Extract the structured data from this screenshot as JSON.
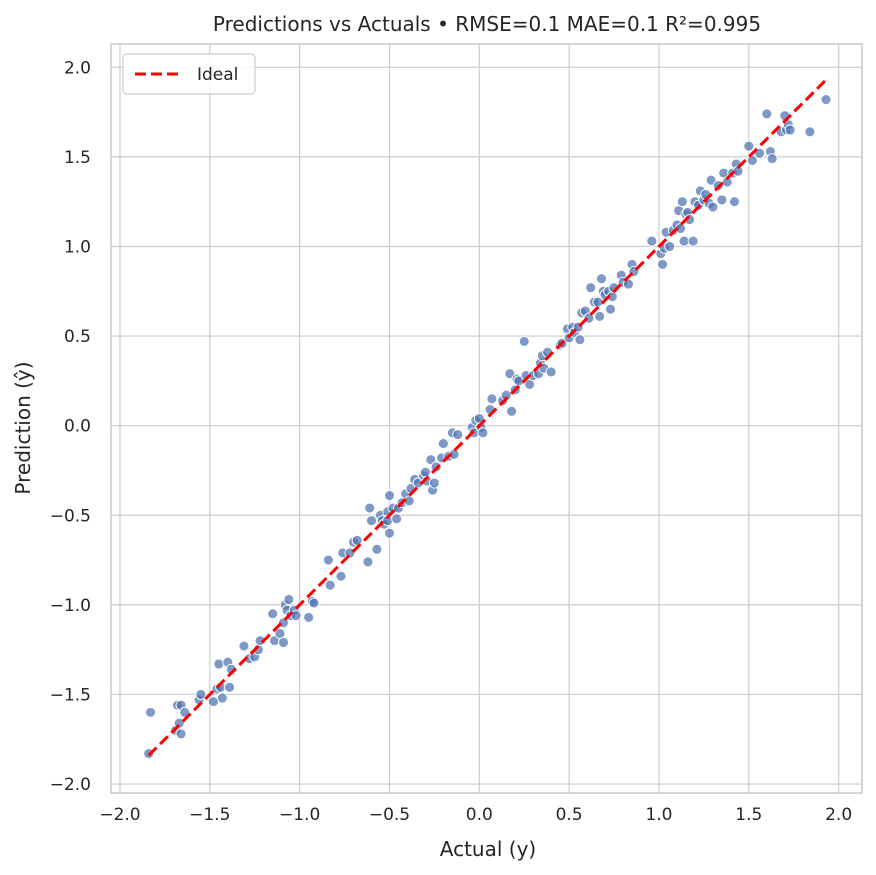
{
  "chart_data": {
    "type": "scatter",
    "title": "Predictions vs Actuals  •  RMSE=0.1  MAE=0.1  R²=0.995",
    "xlabel": "Actual (y)",
    "ylabel": "Prediction (ŷ)",
    "xlim": [
      -2.05,
      2.13
    ],
    "ylim": [
      -2.05,
      2.13
    ],
    "xticks": [
      -2.0,
      -1.5,
      -1.0,
      -0.5,
      0.0,
      0.5,
      1.0,
      1.5,
      2.0
    ],
    "yticks": [
      -2.0,
      -1.5,
      -1.0,
      -0.5,
      0.0,
      0.5,
      1.0,
      1.5,
      2.0
    ],
    "xtick_labels": [
      "−2.0",
      "−1.5",
      "−1.0",
      "−0.5",
      "0.0",
      "0.5",
      "1.0",
      "1.5",
      "2.0"
    ],
    "ytick_labels": [
      "−2.0",
      "−1.5",
      "−1.0",
      "−0.5",
      "0.0",
      "0.5",
      "1.0",
      "1.5",
      "2.0"
    ],
    "grid": true,
    "legend": {
      "placement": "top-left",
      "entries": [
        "Ideal"
      ]
    },
    "colors": {
      "points": "#4c72b0",
      "ideal": "#ff0000"
    },
    "ideal_line": {
      "x": [
        -1.84,
        1.93
      ],
      "y": [
        -1.84,
        1.93
      ]
    },
    "points": [
      [
        -1.84,
        -1.83
      ],
      [
        -1.83,
        -1.6
      ],
      [
        -1.69,
        -1.7
      ],
      [
        -1.68,
        -1.56
      ],
      [
        -1.67,
        -1.66
      ],
      [
        -1.66,
        -1.72
      ],
      [
        -1.66,
        -1.56
      ],
      [
        -1.64,
        -1.6
      ],
      [
        -1.56,
        -1.53
      ],
      [
        -1.55,
        -1.5
      ],
      [
        -1.48,
        -1.54
      ],
      [
        -1.46,
        -1.47
      ],
      [
        -1.45,
        -1.33
      ],
      [
        -1.44,
        -1.46
      ],
      [
        -1.43,
        -1.52
      ],
      [
        -1.4,
        -1.32
      ],
      [
        -1.39,
        -1.46
      ],
      [
        -1.38,
        -1.36
      ],
      [
        -1.31,
        -1.23
      ],
      [
        -1.28,
        -1.3
      ],
      [
        -1.25,
        -1.29
      ],
      [
        -1.23,
        -1.25
      ],
      [
        -1.22,
        -1.2
      ],
      [
        -1.15,
        -1.05
      ],
      [
        -1.14,
        -1.2
      ],
      [
        -1.11,
        -1.16
      ],
      [
        -1.09,
        -1.1
      ],
      [
        -1.09,
        -1.21
      ],
      [
        -1.08,
        -1.0
      ],
      [
        -1.07,
        -1.03
      ],
      [
        -1.06,
        -0.97
      ],
      [
        -1.05,
        -1.06
      ],
      [
        -1.03,
        -1.03
      ],
      [
        -1.02,
        -1.06
      ],
      [
        -0.95,
        -1.07
      ],
      [
        -0.93,
        -0.98
      ],
      [
        -0.92,
        -0.99
      ],
      [
        -0.84,
        -0.75
      ],
      [
        -0.83,
        -0.89
      ],
      [
        -0.77,
        -0.84
      ],
      [
        -0.76,
        -0.71
      ],
      [
        -0.72,
        -0.71
      ],
      [
        -0.7,
        -0.65
      ],
      [
        -0.68,
        -0.64
      ],
      [
        -0.62,
        -0.76
      ],
      [
        -0.61,
        -0.46
      ],
      [
        -0.6,
        -0.53
      ],
      [
        -0.57,
        -0.69
      ],
      [
        -0.55,
        -0.5
      ],
      [
        -0.54,
        -0.53
      ],
      [
        -0.53,
        -0.55
      ],
      [
        -0.51,
        -0.48
      ],
      [
        -0.51,
        -0.53
      ],
      [
        -0.5,
        -0.6
      ],
      [
        -0.5,
        -0.39
      ],
      [
        -0.48,
        -0.46
      ],
      [
        -0.46,
        -0.52
      ],
      [
        -0.45,
        -0.46
      ],
      [
        -0.43,
        -0.43
      ],
      [
        -0.41,
        -0.38
      ],
      [
        -0.39,
        -0.42
      ],
      [
        -0.38,
        -0.35
      ],
      [
        -0.36,
        -0.3
      ],
      [
        -0.34,
        -0.32
      ],
      [
        -0.31,
        -0.28
      ],
      [
        -0.3,
        -0.26
      ],
      [
        -0.29,
        -0.31
      ],
      [
        -0.27,
        -0.19
      ],
      [
        -0.26,
        -0.36
      ],
      [
        -0.25,
        -0.32
      ],
      [
        -0.24,
        -0.23
      ],
      [
        -0.21,
        -0.18
      ],
      [
        -0.2,
        -0.1
      ],
      [
        -0.17,
        -0.17
      ],
      [
        -0.15,
        -0.04
      ],
      [
        -0.14,
        -0.16
      ],
      [
        -0.12,
        -0.05
      ],
      [
        -0.04,
        -0.01
      ],
      [
        -0.03,
        -0.04
      ],
      [
        -0.02,
        0.03
      ],
      [
        0.0,
        0.04
      ],
      [
        0.01,
        -0.01
      ],
      [
        0.02,
        -0.04
      ],
      [
        0.06,
        0.09
      ],
      [
        0.07,
        0.15
      ],
      [
        0.13,
        0.14
      ],
      [
        0.15,
        0.17
      ],
      [
        0.17,
        0.29
      ],
      [
        0.18,
        0.08
      ],
      [
        0.2,
        0.2
      ],
      [
        0.21,
        0.26
      ],
      [
        0.22,
        0.25
      ],
      [
        0.25,
        0.47
      ],
      [
        0.26,
        0.28
      ],
      [
        0.28,
        0.23
      ],
      [
        0.3,
        0.28
      ],
      [
        0.33,
        0.29
      ],
      [
        0.34,
        0.35
      ],
      [
        0.35,
        0.39
      ],
      [
        0.36,
        0.32
      ],
      [
        0.38,
        0.41
      ],
      [
        0.4,
        0.3
      ],
      [
        0.45,
        0.45
      ],
      [
        0.46,
        0.46
      ],
      [
        0.49,
        0.54
      ],
      [
        0.5,
        0.49
      ],
      [
        0.52,
        0.55
      ],
      [
        0.53,
        0.52
      ],
      [
        0.55,
        0.55
      ],
      [
        0.56,
        0.48
      ],
      [
        0.57,
        0.63
      ],
      [
        0.59,
        0.64
      ],
      [
        0.61,
        0.6
      ],
      [
        0.62,
        0.77
      ],
      [
        0.64,
        0.69
      ],
      [
        0.66,
        0.69
      ],
      [
        0.67,
        0.61
      ],
      [
        0.68,
        0.82
      ],
      [
        0.69,
        0.75
      ],
      [
        0.7,
        0.73
      ],
      [
        0.72,
        0.75
      ],
      [
        0.73,
        0.65
      ],
      [
        0.74,
        0.72
      ],
      [
        0.75,
        0.77
      ],
      [
        0.79,
        0.84
      ],
      [
        0.8,
        0.8
      ],
      [
        0.83,
        0.79
      ],
      [
        0.85,
        0.9
      ],
      [
        0.86,
        0.86
      ],
      [
        0.96,
        1.03
      ],
      [
        1.01,
        0.96
      ],
      [
        1.02,
        0.9
      ],
      [
        1.03,
        0.99
      ],
      [
        1.04,
        1.08
      ],
      [
        1.06,
        1.0
      ],
      [
        1.08,
        1.09
      ],
      [
        1.1,
        1.12
      ],
      [
        1.11,
        1.2
      ],
      [
        1.12,
        1.1
      ],
      [
        1.13,
        1.25
      ],
      [
        1.14,
        1.03
      ],
      [
        1.15,
        1.18
      ],
      [
        1.16,
        1.19
      ],
      [
        1.17,
        1.15
      ],
      [
        1.19,
        1.03
      ],
      [
        1.2,
        1.25
      ],
      [
        1.22,
        1.23
      ],
      [
        1.23,
        1.31
      ],
      [
        1.25,
        1.26
      ],
      [
        1.26,
        1.29
      ],
      [
        1.28,
        1.24
      ],
      [
        1.29,
        1.37
      ],
      [
        1.3,
        1.22
      ],
      [
        1.33,
        1.34
      ],
      [
        1.35,
        1.26
      ],
      [
        1.36,
        1.41
      ],
      [
        1.38,
        1.36
      ],
      [
        1.41,
        1.41
      ],
      [
        1.42,
        1.25
      ],
      [
        1.43,
        1.46
      ],
      [
        1.44,
        1.42
      ],
      [
        1.5,
        1.56
      ],
      [
        1.52,
        1.48
      ],
      [
        1.56,
        1.52
      ],
      [
        1.6,
        1.74
      ],
      [
        1.62,
        1.53
      ],
      [
        1.63,
        1.49
      ],
      [
        1.68,
        1.64
      ],
      [
        1.7,
        1.73
      ],
      [
        1.71,
        1.65
      ],
      [
        1.72,
        1.68
      ],
      [
        1.73,
        1.65
      ],
      [
        1.84,
        1.64
      ],
      [
        1.93,
        1.82
      ]
    ]
  }
}
